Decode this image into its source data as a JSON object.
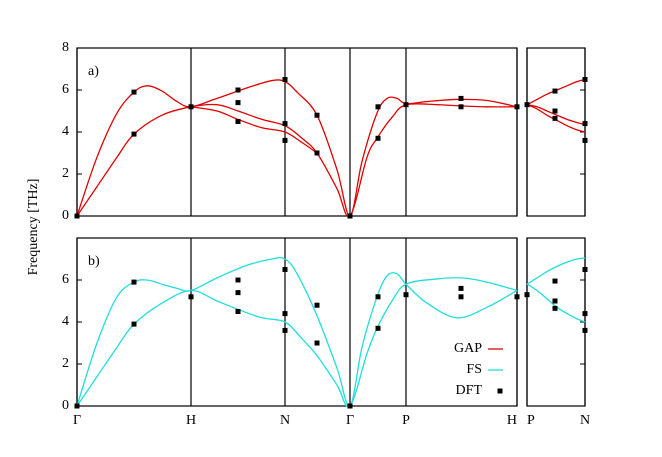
{
  "chart_data": [
    {
      "type": "line",
      "label": "a)",
      "ylabel": "Frequency [THz]",
      "xlim": [
        0,
        4.4
      ],
      "xticks": [
        0,
        1.14,
        2.08,
        2.73,
        3.29,
        4.4
      ],
      "ylim": [
        0,
        8
      ],
      "yticks": [
        0,
        2,
        4,
        6,
        8
      ],
      "series": [
        {
          "color": "#e00000",
          "x": [
            0,
            0.2,
            0.4,
            0.57,
            0.7,
            0.85,
            1.0,
            1.14,
            1.4,
            1.7,
            1.95,
            2.08,
            2.2,
            2.4,
            2.6,
            2.73,
            2.85,
            3.0,
            3.1,
            3.2,
            3.29,
            3.5,
            3.8,
            4.1,
            4.4
          ],
          "values": [
            0,
            2.8,
            4.9,
            5.9,
            6.2,
            5.95,
            5.45,
            5.2,
            5.6,
            6.1,
            6.45,
            6.4,
            5.9,
            4.8,
            2.2,
            0,
            2.6,
            4.9,
            5.6,
            5.6,
            5.35,
            5.45,
            5.55,
            5.5,
            5.2
          ]
        },
        {
          "color": "#e00000",
          "x": [
            0,
            0.2,
            0.4,
            0.57,
            0.85,
            1.14,
            1.4,
            1.61,
            1.85,
            2.08,
            2.25,
            2.4,
            2.6,
            2.73,
            2.9,
            3.0,
            3.15,
            3.29,
            3.6,
            3.8,
            4.1,
            4.4
          ],
          "values": [
            0,
            1.4,
            2.8,
            3.9,
            4.8,
            5.2,
            5.3,
            5.0,
            4.6,
            4.3,
            3.7,
            3.0,
            1.3,
            0,
            2.8,
            3.7,
            4.7,
            5.3,
            5.3,
            5.25,
            5.2,
            5.2
          ]
        },
        {
          "color": "#e00000",
          "x": [
            1.14,
            1.4,
            1.61,
            1.85,
            2.08,
            2.25,
            2.4
          ],
          "values": [
            5.2,
            5.0,
            4.6,
            4.2,
            4.0,
            3.5,
            3.0
          ]
        },
        {
          "marker": "square",
          "color": "#000000",
          "x": [
            0,
            0.57,
            0.57,
            1.14,
            1.61,
            1.61,
            1.61,
            2.08,
            2.08,
            2.08,
            2.4,
            2.4,
            2.73,
            3.01,
            3.01,
            3.29,
            3.84,
            3.84,
            4.4
          ],
          "values": [
            0,
            5.9,
            3.9,
            5.2,
            6.0,
            5.4,
            4.5,
            6.5,
            4.4,
            3.6,
            4.8,
            3.0,
            0,
            5.2,
            3.7,
            5.3,
            5.6,
            5.2,
            5.2
          ]
        }
      ]
    },
    {
      "type": "line",
      "side": "right",
      "xlim": [
        0,
        0.58
      ],
      "xticks": [
        0,
        0.58
      ],
      "ylim": [
        0,
        8
      ],
      "yticks": [
        0,
        2,
        4,
        6,
        8
      ],
      "series": [
        {
          "color": "#e00000",
          "x": [
            0,
            0.1,
            0.2,
            0.3,
            0.4,
            0.5,
            0.58
          ],
          "values": [
            5.3,
            5.55,
            5.8,
            6.0,
            6.2,
            6.4,
            6.5
          ]
        },
        {
          "color": "#e00000",
          "x": [
            0,
            0.1,
            0.2,
            0.3,
            0.4,
            0.5,
            0.58
          ],
          "values": [
            5.3,
            5.2,
            5.0,
            4.8,
            4.6,
            4.45,
            4.35
          ]
        },
        {
          "color": "#e00000",
          "x": [
            0,
            0.1,
            0.2,
            0.3,
            0.4,
            0.5,
            0.58
          ],
          "values": [
            5.3,
            5.1,
            4.8,
            4.55,
            4.3,
            4.1,
            4.0
          ]
        },
        {
          "marker": "square",
          "color": "#000000",
          "x": [
            0,
            0.28,
            0.28,
            0.28,
            0.58,
            0.58,
            0.58
          ],
          "values": [
            5.3,
            5.95,
            5.0,
            4.65,
            6.5,
            4.4,
            3.6
          ]
        }
      ]
    },
    {
      "type": "line",
      "label": "b)",
      "xlim": [
        0,
        4.4
      ],
      "xticks": [
        {
          "value": 0,
          "label": "Γ"
        },
        {
          "value": 1.14,
          "label": "H"
        },
        {
          "value": 2.08,
          "label": "N"
        },
        {
          "value": 2.73,
          "label": "Γ"
        },
        {
          "value": 3.29,
          "label": "P"
        },
        {
          "value": 4.4,
          "label": "H"
        }
      ],
      "ylim": [
        0,
        8
      ],
      "yticks": [
        0,
        2,
        4,
        6
      ],
      "legend": [
        {
          "name": "GAP",
          "color": "#e00000"
        },
        {
          "name": "FS",
          "color": "#22dddd"
        },
        {
          "name": "DFT",
          "color": "#000000",
          "marker": "square"
        }
      ],
      "legend_loc": "lower right",
      "series": [
        {
          "color": "#22dddd",
          "x": [
            0,
            0.2,
            0.4,
            0.57,
            0.7,
            0.85,
            1.0,
            1.14,
            1.4,
            1.7,
            1.95,
            2.08,
            2.2,
            2.4,
            2.6,
            2.73,
            2.85,
            3.0,
            3.1,
            3.2,
            3.29,
            3.5,
            3.8,
            4.1,
            4.4
          ],
          "values": [
            0,
            3.0,
            5.2,
            5.9,
            6.0,
            5.8,
            5.6,
            5.5,
            6.1,
            6.7,
            7.0,
            7.0,
            6.3,
            4.3,
            1.8,
            0,
            2.8,
            5.2,
            6.2,
            6.3,
            5.8,
            4.9,
            4.2,
            4.7,
            5.5
          ]
        },
        {
          "color": "#22dddd",
          "x": [
            0,
            0.2,
            0.4,
            0.57,
            0.85,
            1.14,
            1.4,
            1.61,
            1.85,
            2.08,
            2.25,
            2.4,
            2.6,
            2.73,
            2.9,
            3.0,
            3.15,
            3.29,
            3.6,
            3.85,
            4.1,
            4.4
          ],
          "values": [
            0,
            1.4,
            2.8,
            3.9,
            4.9,
            5.5,
            5.0,
            4.6,
            4.2,
            4.0,
            3.2,
            2.4,
            1.0,
            0,
            2.5,
            3.7,
            5.0,
            5.8,
            6.05,
            6.1,
            5.9,
            5.5
          ]
        },
        {
          "marker": "square",
          "color": "#000000",
          "x": [
            0,
            0.57,
            0.57,
            1.14,
            1.61,
            1.61,
            1.61,
            2.08,
            2.08,
            2.08,
            2.4,
            2.4,
            2.73,
            3.01,
            3.01,
            3.29,
            3.84,
            3.84,
            4.4
          ],
          "values": [
            0,
            5.9,
            3.9,
            5.2,
            6.0,
            5.4,
            4.5,
            6.5,
            4.4,
            3.6,
            4.8,
            3.0,
            0,
            5.2,
            3.7,
            5.3,
            5.6,
            5.2,
            5.2
          ]
        }
      ]
    },
    {
      "type": "line",
      "side": "right",
      "xlim": [
        0,
        0.58
      ],
      "xticks": [
        {
          "value": 0,
          "label": "P"
        },
        {
          "value": 0.58,
          "label": "N"
        }
      ],
      "ylim": [
        0,
        8
      ],
      "yticks": [
        0,
        2,
        4,
        6
      ],
      "series": [
        {
          "color": "#22dddd",
          "x": [
            0,
            0.1,
            0.2,
            0.3,
            0.4,
            0.5,
            0.58
          ],
          "values": [
            5.8,
            6.1,
            6.4,
            6.65,
            6.85,
            7.0,
            7.05
          ]
        },
        {
          "color": "#22dddd",
          "x": [
            0,
            0.1,
            0.2,
            0.3,
            0.4,
            0.5,
            0.58
          ],
          "values": [
            5.8,
            5.5,
            5.1,
            4.7,
            4.4,
            4.15,
            4.0
          ]
        },
        {
          "marker": "square",
          "color": "#000000",
          "x": [
            0,
            0.28,
            0.28,
            0.28,
            0.58,
            0.58,
            0.58
          ],
          "values": [
            5.3,
            5.95,
            5.0,
            4.65,
            6.5,
            4.4,
            3.6
          ]
        }
      ]
    }
  ]
}
